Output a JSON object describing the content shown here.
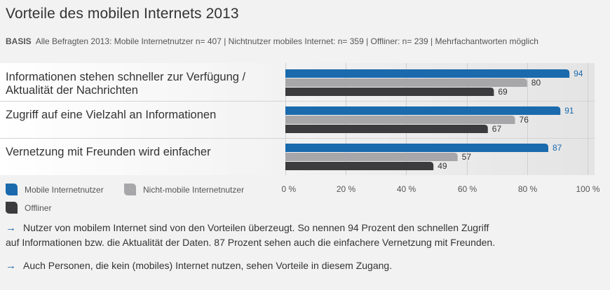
{
  "title": "Vorteile des mobilen Internets 2013",
  "basis": {
    "label": "BASIS",
    "text": "Alle Befragten 2013: Mobile Internetnutzer n= 407 | Nichtnutzer mobiles Internet: n= 359 | Offliner: n= 239 | Mehrfachantworten möglich"
  },
  "chart_data": {
    "type": "bar",
    "orientation": "horizontal",
    "categories": [
      "Informationen stehen schneller zur Verfügung / Aktualität der Nachrichten",
      "Zugriff auf eine Vielzahl an Informationen",
      "Vernetzung mit Freunden wird einfacher"
    ],
    "category_lines": [
      [
        "Informationen stehen schneller zur Verfügung /",
        "Aktualität der Nachrichten"
      ],
      [
        "Zugriff auf eine Vielzahl an Informationen"
      ],
      [
        "Vernetzung mit Freunden wird einfacher"
      ]
    ],
    "series": [
      {
        "name": "Mobile Internetnutzer",
        "values": [
          94,
          91,
          87
        ],
        "color": "#1a6aad"
      },
      {
        "name": "Nicht-mobile Internetnutzer",
        "values": [
          80,
          76,
          57
        ],
        "color": "#a7a7a9"
      },
      {
        "name": "Offliner",
        "values": [
          69,
          67,
          49
        ],
        "color": "#3c3c3e"
      }
    ],
    "xlim": [
      0,
      100
    ],
    "ticks": [
      "0 %",
      "20 %",
      "40 %",
      "60 %",
      "80 %",
      "100 %"
    ],
    "grid": true,
    "legend_placement": "bottom-left"
  },
  "notes": [
    "Nutzer von mobilem Internet sind von den Vorteilen überzeugt. So nennen 94 Prozent den schnellen Zugriff auf Informationen bzw. die Aktualität der Daten. 87 Prozent sehen auch die einfachere Vernetzung mit Freunden.",
    "Auch Personen, die kein (mobiles) Internet nutzen, sehen Vorteile in diesem Zugang."
  ],
  "notes_lines": [
    [
      "Nutzer von mobilem Internet sind von den Vorteilen überzeugt. So nennen 94 Prozent den schnellen Zugriff",
      "auf Informationen bzw. die Aktualität der Daten. 87 Prozent sehen auch die einfachere Vernetzung mit Freunden."
    ],
    [
      "Auch Personen, die kein (mobiles) Internet nutzen, sehen Vorteile in diesem Zugang."
    ]
  ],
  "icons": {
    "note_arrow": "arrow-right-icon",
    "arrow_glyph": "→"
  }
}
